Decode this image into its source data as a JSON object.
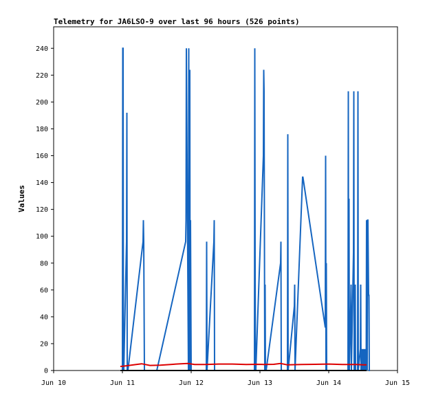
{
  "chart_data": {
    "type": "line",
    "title": "Telemetry for JA6LSO-9 over last 96 hours (526 points)",
    "xlabel": "",
    "ylabel": "Values",
    "x_tick_labels": [
      "Jun 10",
      "Jun 11",
      "Jun 12",
      "Jun 13",
      "Jun 14",
      "Jun 15"
    ],
    "y_tick_labels": [
      "0",
      "20",
      "40",
      "60",
      "80",
      "100",
      "120",
      "140",
      "160",
      "180",
      "200",
      "220",
      "240"
    ],
    "xlim": [
      10,
      15
    ],
    "ylim": [
      0,
      256
    ],
    "colors": {
      "blue": "#1565c0",
      "red": "#dd0000",
      "black": "#000000"
    },
    "series": [
      {
        "color": "blue",
        "x": [
          11.0,
          11.005,
          11.01,
          11.015,
          11.02,
          11.06,
          11.065,
          11.07,
          11.075,
          11.08,
          11.3,
          11.305,
          11.31,
          11.32,
          11.5,
          11.92,
          11.925,
          11.93,
          11.96,
          11.965,
          11.97,
          11.98,
          11.985,
          11.99,
          12.0,
          12.005,
          12.01,
          12.22,
          12.225,
          12.23,
          12.33,
          12.335,
          12.34,
          12.92,
          12.925,
          12.93,
          12.935,
          12.94,
          13.05,
          13.055,
          13.06,
          13.07,
          13.075,
          13.08,
          13.09,
          13.3,
          13.305,
          13.31,
          13.4,
          13.405,
          13.41,
          13.5,
          13.505,
          13.51,
          13.62,
          13.625,
          13.95,
          13.955,
          13.96,
          13.965,
          13.97,
          14.28,
          14.285,
          14.29,
          14.295,
          14.3,
          14.32,
          14.325,
          14.33,
          14.36,
          14.365,
          14.37,
          14.38,
          14.385,
          14.39,
          14.42,
          14.425,
          14.43,
          14.46,
          14.465,
          14.47,
          14.48,
          14.485,
          14.49,
          14.5,
          14.505,
          14.51,
          14.52,
          14.525,
          14.53,
          14.54,
          14.545,
          14.55,
          14.56,
          14.565,
          14.57,
          14.58,
          14.585,
          14.59,
          14.595,
          14.6
        ],
        "values": [
          0,
          240,
          240,
          0,
          0,
          96,
          192,
          0,
          0,
          0,
          96,
          112,
          96,
          0,
          0,
          96,
          112,
          240,
          0,
          240,
          0,
          224,
          0,
          112,
          0,
          0,
          0,
          0,
          96,
          0,
          96,
          112,
          0,
          0,
          240,
          80,
          0,
          0,
          160,
          224,
          208,
          0,
          64,
          0,
          0,
          80,
          96,
          0,
          0,
          176,
          0,
          48,
          64,
          0,
          144,
          144,
          32,
          160,
          0,
          80,
          0,
          0,
          208,
          0,
          128,
          0,
          48,
          64,
          0,
          88,
          208,
          0,
          16,
          64,
          0,
          0,
          208,
          0,
          16,
          64,
          0,
          16,
          0,
          16,
          0,
          16,
          0,
          0,
          16,
          0,
          16,
          0,
          112,
          0,
          112,
          112,
          56,
          56,
          0,
          0,
          0
        ]
      },
      {
        "color": "red",
        "x": [
          10.97,
          11.05,
          11.2,
          11.28,
          11.4,
          11.55,
          11.7,
          11.85,
          11.95,
          12.05,
          12.2,
          12.4,
          12.6,
          12.8,
          12.95,
          13.05,
          13.2,
          13.3,
          13.4,
          13.6,
          13.8,
          14.0,
          14.2,
          14.3,
          14.4,
          14.5,
          14.55
        ],
        "values": [
          3,
          3.5,
          4.5,
          5,
          3.8,
          4,
          4.5,
          5,
          5.2,
          4.5,
          4.5,
          4.8,
          4.8,
          4.5,
          4.6,
          4.5,
          4.6,
          5.2,
          4.2,
          4.5,
          4.6,
          4.8,
          4.5,
          4.5,
          4.5,
          4.2,
          4.2
        ]
      },
      {
        "color": "black",
        "x": [
          10.97,
          14.55
        ],
        "values": [
          0,
          0
        ]
      }
    ]
  }
}
